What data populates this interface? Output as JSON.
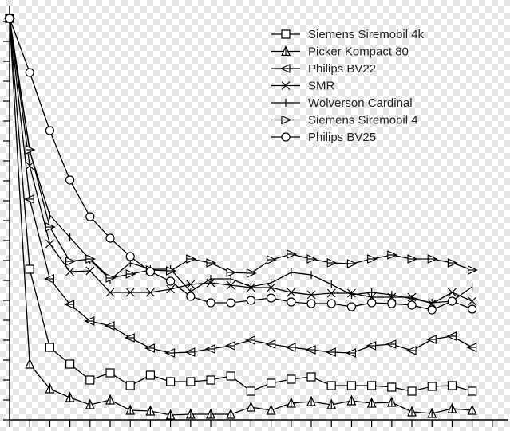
{
  "chart_data": {
    "type": "line",
    "x": [
      0,
      1,
      2,
      3,
      4,
      5,
      6,
      7,
      8,
      9,
      10,
      11,
      12,
      13,
      14,
      15,
      16,
      17,
      18,
      19,
      20,
      21,
      22,
      23
    ],
    "xlim": [
      0,
      24.8
    ],
    "xticks": [
      0,
      1,
      2,
      3,
      4,
      5,
      6,
      7,
      8,
      9,
      10,
      11,
      12,
      13,
      14,
      15,
      16,
      17,
      18,
      19,
      20,
      21,
      22,
      23,
      24
    ],
    "ylim": [
      0,
      520
    ],
    "yticks": [
      0,
      25,
      50,
      75,
      100,
      125,
      150,
      175,
      200,
      225,
      250,
      275,
      300,
      325,
      350,
      375,
      400,
      425,
      450,
      475,
      500
    ],
    "grid": false,
    "legend": "upper right",
    "series": [
      {
        "name": "Siemens Siremobil 4k",
        "color": "#000000",
        "marker": "square",
        "values": [
          504,
          189,
          91,
          70,
          50,
          59,
          43,
          56,
          48,
          48,
          50,
          55,
          36,
          46,
          51,
          54,
          43,
          43,
          43,
          41,
          36,
          42,
          43,
          36
        ]
      },
      {
        "name": "Picker Kompact 80",
        "color": "#000000",
        "marker": "triangle-up",
        "values": [
          504,
          70,
          39,
          28,
          19,
          25,
          12,
          11,
          6,
          7,
          7,
          7,
          16,
          12,
          21,
          23,
          19,
          24,
          21,
          22,
          10,
          8,
          14,
          12
        ]
      },
      {
        "name": "Philips BV22",
        "color": "#000000",
        "marker": "triangle-left",
        "values": [
          504,
          277,
          177,
          145,
          124,
          118,
          103,
          90,
          84,
          85,
          89,
          93,
          100,
          95,
          91,
          88,
          85,
          84,
          93,
          95,
          87,
          101,
          105,
          91
        ]
      },
      {
        "name": "SMR",
        "color": "#000000",
        "marker": "x",
        "values": [
          504,
          319,
          221,
          186,
          187,
          160,
          160,
          160,
          164,
          170,
          172,
          169,
          166,
          166,
          160,
          157,
          159,
          159,
          154,
          154,
          154,
          146,
          160,
          149
        ]
      },
      {
        "name": "Wolverson Cardinal",
        "color": "#000000",
        "marker": "vline",
        "values": [
          504,
          337,
          257,
          229,
          201,
          176,
          197,
          189,
          189,
          161,
          177,
          177,
          167,
          172,
          185,
          182,
          170,
          157,
          160,
          157,
          152,
          147,
          149,
          167
        ]
      },
      {
        "name": "Siemens Siremobil 4",
        "color": "#000000",
        "marker": "triangle-right",
        "values": [
          504,
          339,
          242,
          199,
          202,
          178,
          183,
          188,
          187,
          202,
          197,
          185,
          184,
          201,
          208,
          202,
          197,
          196,
          202,
          207,
          202,
          202,
          197,
          188
        ]
      },
      {
        "name": "Philips BV25",
        "color": "#000000",
        "marker": "circle",
        "values": [
          504,
          436,
          363,
          301,
          255,
          228,
          205,
          186,
          174,
          155,
          147,
          147,
          150,
          153,
          148,
          146,
          146,
          142,
          147,
          146,
          144,
          138,
          149,
          139
        ]
      }
    ]
  }
}
